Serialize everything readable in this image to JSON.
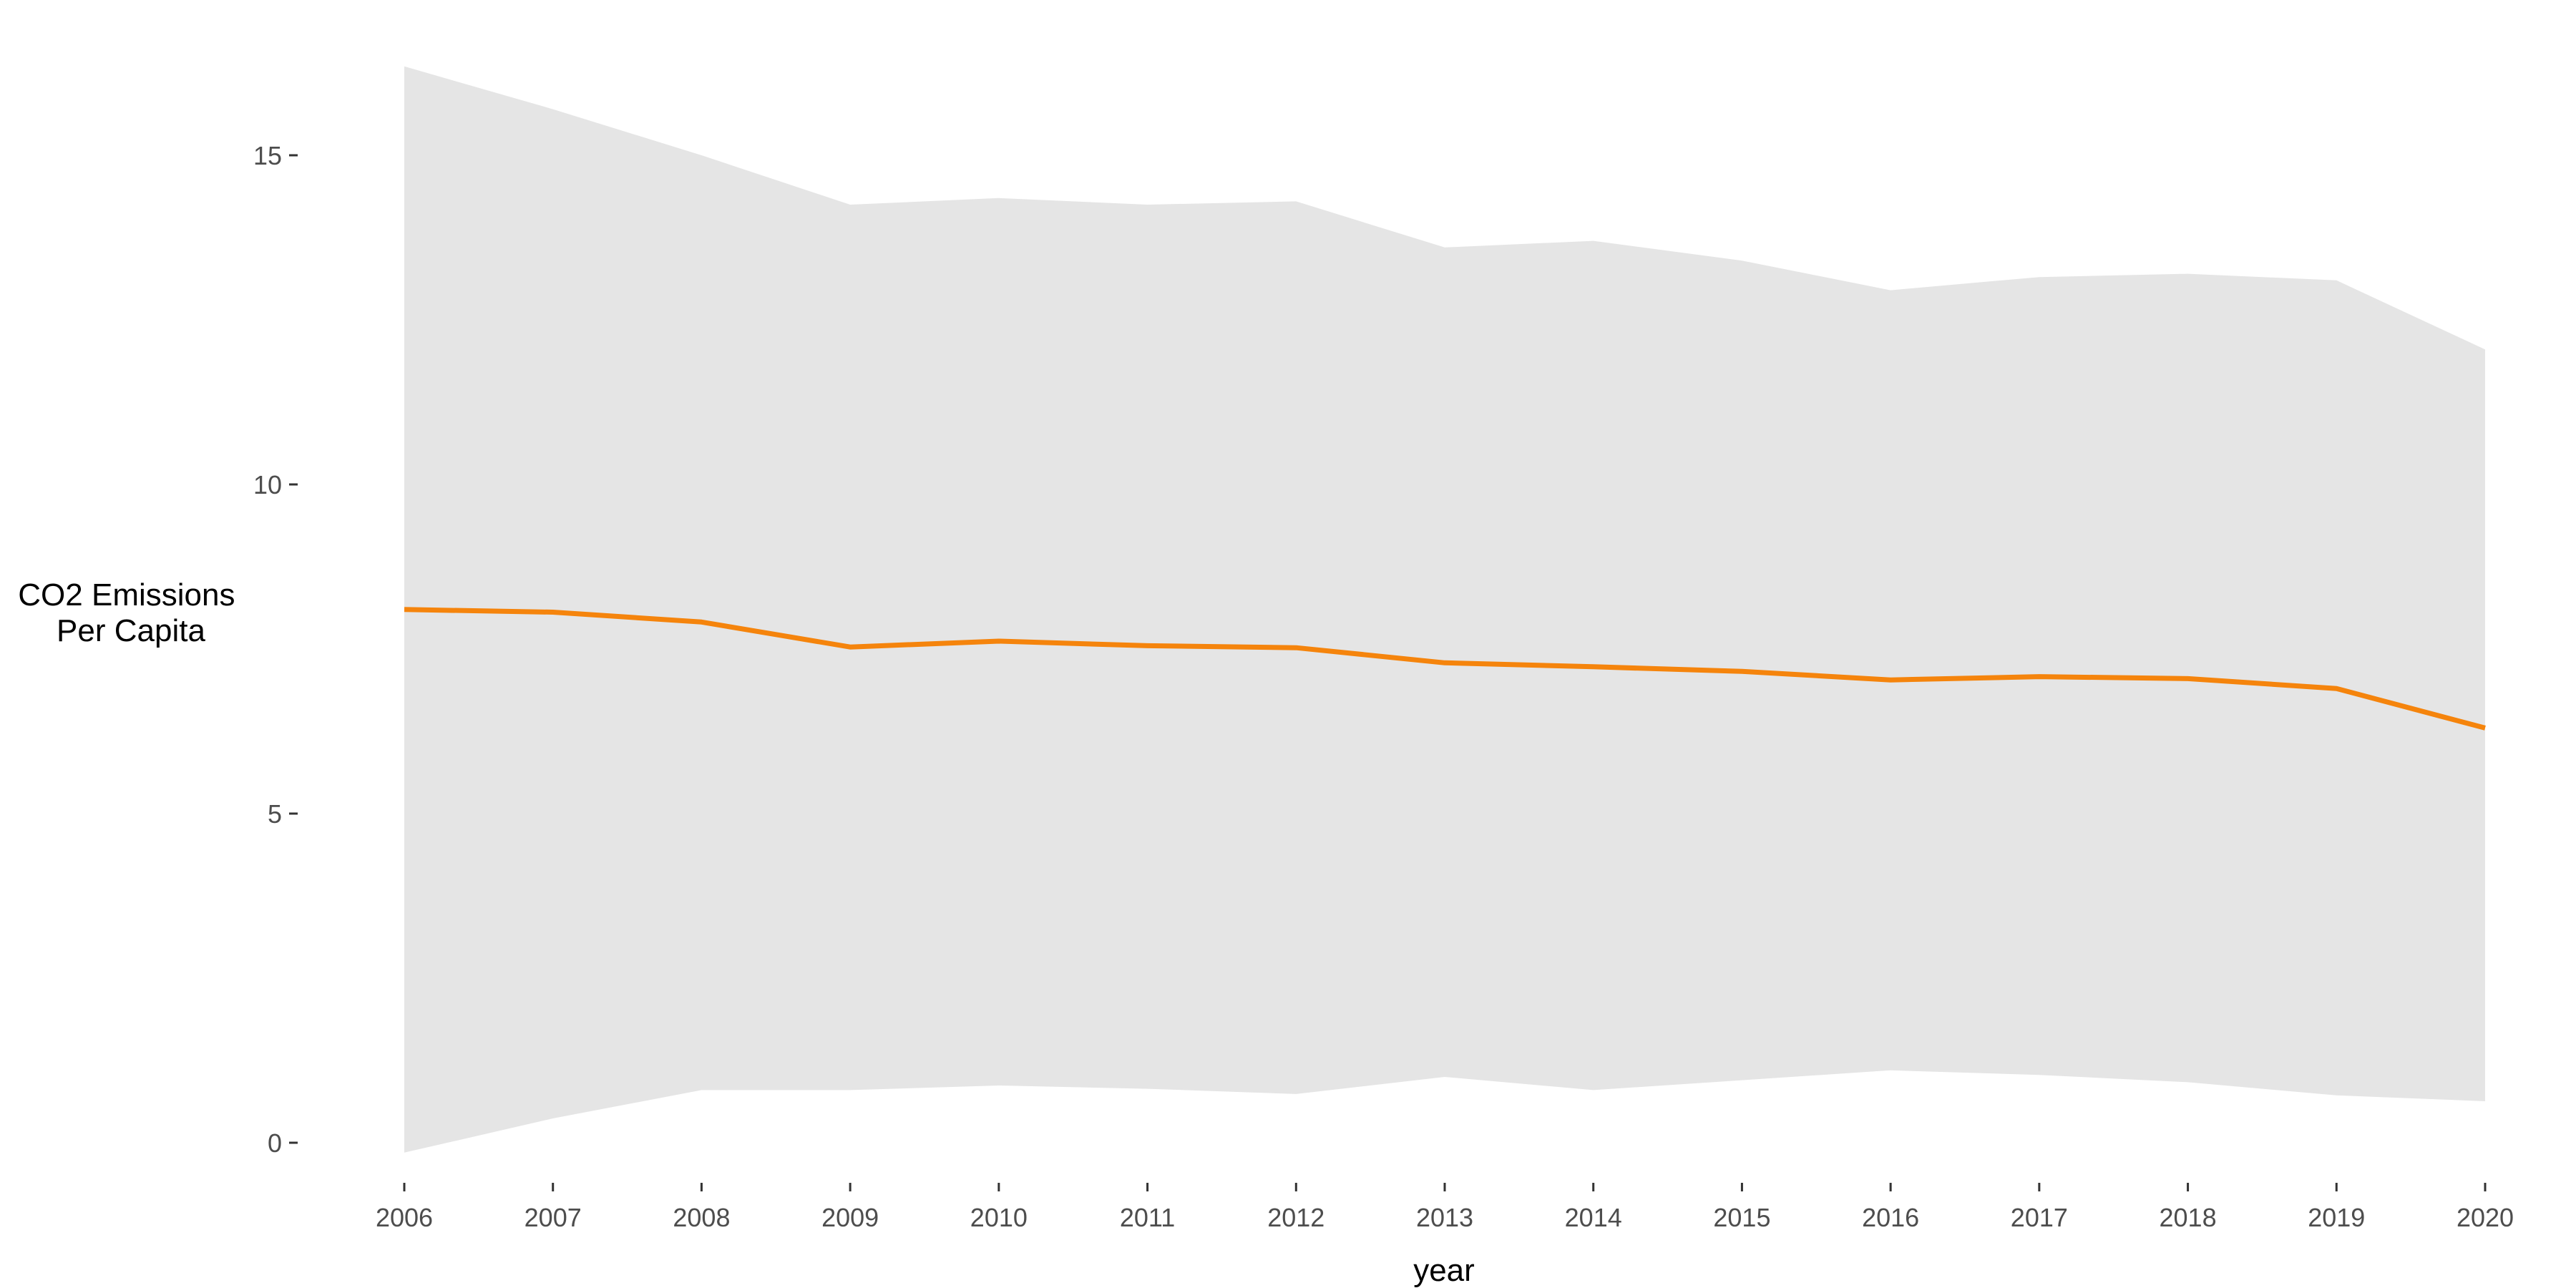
{
  "chart_data": {
    "type": "line",
    "title": "",
    "xlabel": "year",
    "ylabel_lines": [
      "CO2 Emissions",
      "Per Capita"
    ],
    "x": [
      2006,
      2007,
      2008,
      2009,
      2010,
      2011,
      2012,
      2013,
      2014,
      2015,
      2016,
      2017,
      2018,
      2019,
      2020
    ],
    "series": [
      {
        "values": [
          8.1,
          8.06,
          7.91,
          7.53,
          7.62,
          7.55,
          7.52,
          7.29,
          7.23,
          7.16,
          7.03,
          7.08,
          7.05,
          6.9,
          6.3
        ],
        "upper": [
          16.35,
          15.7,
          15.0,
          14.25,
          14.35,
          14.25,
          14.3,
          13.6,
          13.7,
          13.4,
          12.95,
          13.15,
          13.2,
          13.1,
          12.05
        ],
        "lower": [
          -0.15,
          0.37,
          0.8,
          0.8,
          0.87,
          0.82,
          0.74,
          1.0,
          0.8,
          0.95,
          1.1,
          1.03,
          0.92,
          0.72,
          0.63
        ]
      }
    ],
    "xticks": [
      "2006",
      "2007",
      "2008",
      "2009",
      "2010",
      "2011",
      "2012",
      "2013",
      "2014",
      "2015",
      "2016",
      "2017",
      "2018",
      "2019",
      "2020"
    ],
    "yticks": [
      0,
      5,
      10,
      15
    ],
    "ylim": [
      -0.6,
      17.1
    ],
    "xlim": [
      2006,
      2020
    ],
    "grid": false,
    "legend": "none",
    "colors": {
      "line": "#f5840c",
      "band": "#e5e5e5"
    }
  }
}
